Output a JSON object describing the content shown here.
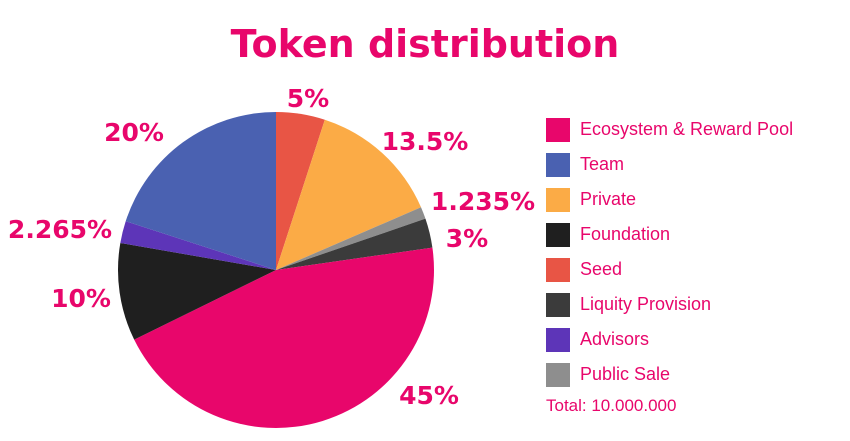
{
  "chart_data": {
    "type": "pie",
    "title": "Token distribution",
    "slices": [
      {
        "label": "Seed",
        "value": 5,
        "display": "5%",
        "color": "#e85545"
      },
      {
        "label": "Private",
        "value": 13.5,
        "display": "13.5%",
        "color": "#fbab46"
      },
      {
        "label": "Public Sale",
        "value": 1.235,
        "display": "1.235%",
        "color": "#8e8e8e"
      },
      {
        "label": "Liquity Provision",
        "value": 3,
        "display": "3%",
        "color": "#3b3b3b"
      },
      {
        "label": "Ecosystem & Reward Pool",
        "value": 45,
        "display": "45%",
        "color": "#e8066b"
      },
      {
        "label": "Foundation",
        "value": 10,
        "display": "10%",
        "color": "#1f1f1f"
      },
      {
        "label": "Advisors",
        "value": 2.265,
        "display": "2.265%",
        "color": "#5d35b8"
      },
      {
        "label": "Team",
        "value": 20,
        "display": "20%",
        "color": "#4a61b1"
      }
    ],
    "legend_order": [
      "Ecosystem & Reward Pool",
      "Team",
      "Private",
      "Foundation",
      "Seed",
      "Liquity Provision",
      "Advisors",
      "Public Sale"
    ],
    "legend_position": "right",
    "total_text": "Total: 10.000.000",
    "start": "12 o'clock, clockwise"
  }
}
